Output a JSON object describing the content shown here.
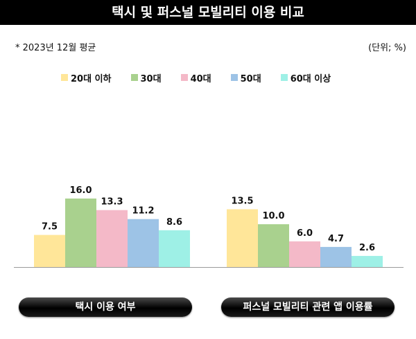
{
  "header": {
    "title": "택시 및 퍼스널 모빌리티 이용 비교"
  },
  "note": "* 2023년 12월 평균",
  "unit": "(단위; %)",
  "chart_data": {
    "type": "bar",
    "title": "택시 및 퍼스널 모빌리티 이용 비교",
    "categories": [
      "택시 이용 여부",
      "퍼스널 모빌리티 관련 앱 이용률"
    ],
    "series": [
      {
        "name": "20대 이하",
        "color": "#FFE699",
        "values": [
          7.5,
          13.5
        ],
        "labels": [
          "7.5",
          "13.5"
        ]
      },
      {
        "name": "30대",
        "color": "#A9D18E",
        "values": [
          16.0,
          10.0
        ],
        "labels": [
          "16.0",
          "10.0"
        ]
      },
      {
        "name": "40대",
        "color": "#F4B9C8",
        "values": [
          13.3,
          6.0
        ],
        "labels": [
          "13.3",
          "6.0"
        ]
      },
      {
        "name": "50대",
        "color": "#9DC3E6",
        "values": [
          11.2,
          4.7
        ],
        "labels": [
          "11.2",
          "4.7"
        ]
      },
      {
        "name": "60대 이상",
        "color": "#9EF0E6",
        "values": [
          8.6,
          2.6
        ],
        "labels": [
          "8.6",
          "2.6"
        ]
      }
    ],
    "ylim": [
      0,
      16
    ],
    "xlabel": "",
    "ylabel": "",
    "legend": "top",
    "grid": false
  }
}
